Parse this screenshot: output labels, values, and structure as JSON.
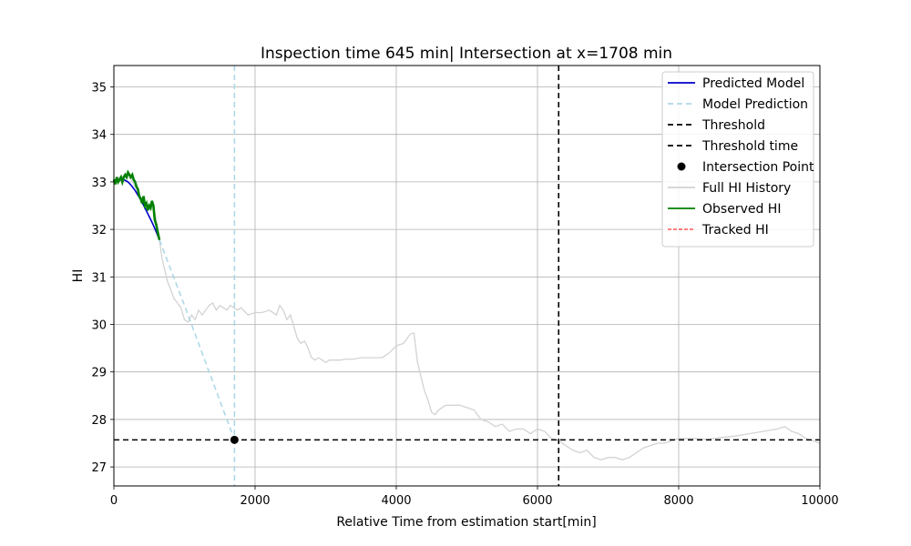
{
  "chart_data": {
    "type": "line",
    "title": "Inspection time 645 min| Intersection at x=1708 min",
    "xlabel": "Relative Time from estimation start[min]",
    "ylabel": "HI",
    "xlim": [
      0,
      10000
    ],
    "ylim": [
      26.6,
      35.45
    ],
    "xticks": [
      0,
      2000,
      4000,
      6000,
      8000,
      10000
    ],
    "yticks": [
      27,
      28,
      29,
      30,
      31,
      32,
      33,
      34,
      35
    ],
    "grid": true,
    "legend_position": "top-right",
    "colors": {
      "predicted_model": "#0000cc",
      "model_prediction": "#add8e6",
      "threshold": "#000000",
      "intersection": "#000000",
      "full_hi_history": "#d3d3d3",
      "observed_hi": "#008000",
      "tracked_hi": "#ff0000"
    },
    "legend": [
      {
        "key": "predicted_model",
        "label": "Predicted Model",
        "style": "solid",
        "color": "#0000cc"
      },
      {
        "key": "model_prediction",
        "label": "Model Prediction",
        "style": "dashed",
        "color": "#add8e6"
      },
      {
        "key": "threshold",
        "label": "Threshold",
        "style": "dashed",
        "color": "#000000"
      },
      {
        "key": "threshold_time",
        "label": "Threshold time",
        "style": "dashed",
        "color": "#000000"
      },
      {
        "key": "intersection",
        "label": "Intersection Point",
        "style": "marker",
        "color": "#000000"
      },
      {
        "key": "full_hi_history",
        "label": "Full HI History",
        "style": "solid",
        "color": "#d3d3d3"
      },
      {
        "key": "observed_hi",
        "label": "Observed HI",
        "style": "solid",
        "color": "#008000"
      },
      {
        "key": "tracked_hi",
        "label": "Tracked HI",
        "style": "dashed-thin",
        "color": "#ff0000"
      }
    ],
    "threshold_y": 27.57,
    "threshold_time_x": 6300,
    "intersection_x": 1708,
    "intersection_y": 27.57,
    "series": [
      {
        "name": "Full HI History",
        "x": [
          0,
          30,
          60,
          100,
          150,
          200,
          250,
          300,
          350,
          400,
          450,
          500,
          550,
          600,
          645,
          680,
          720,
          760,
          800,
          850,
          900,
          950,
          1000,
          1050,
          1100,
          1150,
          1200,
          1250,
          1300,
          1350,
          1400,
          1450,
          1500,
          1550,
          1600,
          1650,
          1700,
          1750,
          1800,
          1900,
          2000,
          2100,
          2200,
          2300,
          2350,
          2400,
          2450,
          2500,
          2550,
          2600,
          2650,
          2700,
          2750,
          2800,
          2850,
          2900,
          2950,
          3000,
          3050,
          3100,
          3200,
          3300,
          3400,
          3500,
          3600,
          3700,
          3800,
          3900,
          4000,
          4100,
          4200,
          4250,
          4300,
          4350,
          4400,
          4450,
          4500,
          4550,
          4600,
          4700,
          4800,
          4900,
          5000,
          5100,
          5200,
          5300,
          5400,
          5500,
          5600,
          5700,
          5800,
          5900,
          6000,
          6100,
          6200,
          6300,
          6400,
          6500,
          6600,
          6700,
          6800,
          6900,
          7000,
          7100,
          7200,
          7300,
          7400,
          7500,
          7600,
          7700,
          7800,
          7900,
          8000,
          8200,
          8400,
          8600,
          8800,
          9000,
          9200,
          9400,
          9500,
          9600,
          9700,
          9800,
          9900,
          10000
        ],
        "y": [
          33.0,
          32.95,
          33.1,
          33.0,
          33.15,
          33.1,
          33.05,
          32.9,
          32.75,
          32.6,
          32.55,
          32.45,
          32.55,
          32.2,
          31.78,
          31.4,
          31.15,
          30.9,
          30.75,
          30.55,
          30.45,
          30.35,
          30.1,
          30.05,
          30.2,
          30.1,
          30.3,
          30.2,
          30.3,
          30.4,
          30.45,
          30.3,
          30.4,
          30.35,
          30.3,
          30.4,
          30.35,
          30.3,
          30.35,
          30.2,
          30.25,
          30.25,
          30.3,
          30.2,
          30.4,
          30.3,
          30.1,
          30.2,
          29.95,
          29.7,
          29.6,
          29.65,
          29.5,
          29.3,
          29.25,
          29.3,
          29.25,
          29.2,
          29.25,
          29.25,
          29.25,
          29.27,
          29.27,
          29.3,
          29.3,
          29.3,
          29.3,
          29.4,
          29.55,
          29.6,
          29.8,
          29.82,
          29.2,
          28.9,
          28.6,
          28.4,
          28.15,
          28.1,
          28.2,
          28.3,
          28.3,
          28.3,
          28.25,
          28.2,
          28.0,
          27.95,
          27.85,
          27.9,
          27.75,
          27.8,
          27.8,
          27.7,
          27.8,
          27.75,
          27.6,
          27.55,
          27.45,
          27.35,
          27.3,
          27.35,
          27.2,
          27.15,
          27.2,
          27.2,
          27.15,
          27.2,
          27.3,
          27.4,
          27.45,
          27.5,
          27.5,
          27.55,
          27.6,
          27.6,
          27.58,
          27.62,
          27.65,
          27.7,
          27.75,
          27.8,
          27.85,
          27.75,
          27.7,
          27.6,
          27.55,
          27.5
        ]
      },
      {
        "name": "Observed HI",
        "x": [
          0,
          20,
          40,
          60,
          80,
          100,
          120,
          140,
          160,
          180,
          200,
          220,
          240,
          260,
          280,
          300,
          320,
          340,
          360,
          380,
          400,
          420,
          440,
          460,
          480,
          500,
          520,
          540,
          560,
          580,
          600,
          620,
          645
        ],
        "y": [
          33.05,
          32.95,
          33.1,
          33.0,
          33.05,
          33.1,
          33.0,
          33.1,
          33.15,
          33.1,
          33.2,
          33.15,
          33.1,
          33.15,
          33.05,
          33.0,
          32.9,
          32.85,
          32.7,
          32.65,
          32.55,
          32.7,
          32.5,
          32.55,
          32.4,
          32.5,
          32.45,
          32.6,
          32.5,
          32.2,
          32.1,
          31.95,
          31.78
        ]
      },
      {
        "name": "Predicted Model",
        "x": [
          0,
          50,
          100,
          150,
          200,
          250,
          300,
          350,
          400,
          450,
          500,
          550,
          600,
          645
        ],
        "y": [
          33.0,
          33.03,
          33.05,
          33.04,
          33.0,
          32.92,
          32.82,
          32.7,
          32.57,
          32.42,
          32.27,
          32.12,
          31.95,
          31.78
        ]
      },
      {
        "name": "Model Prediction",
        "x": [
          645,
          1000,
          1400,
          1708
        ],
        "y": [
          31.78,
          30.4,
          28.8,
          27.57
        ]
      }
    ]
  }
}
